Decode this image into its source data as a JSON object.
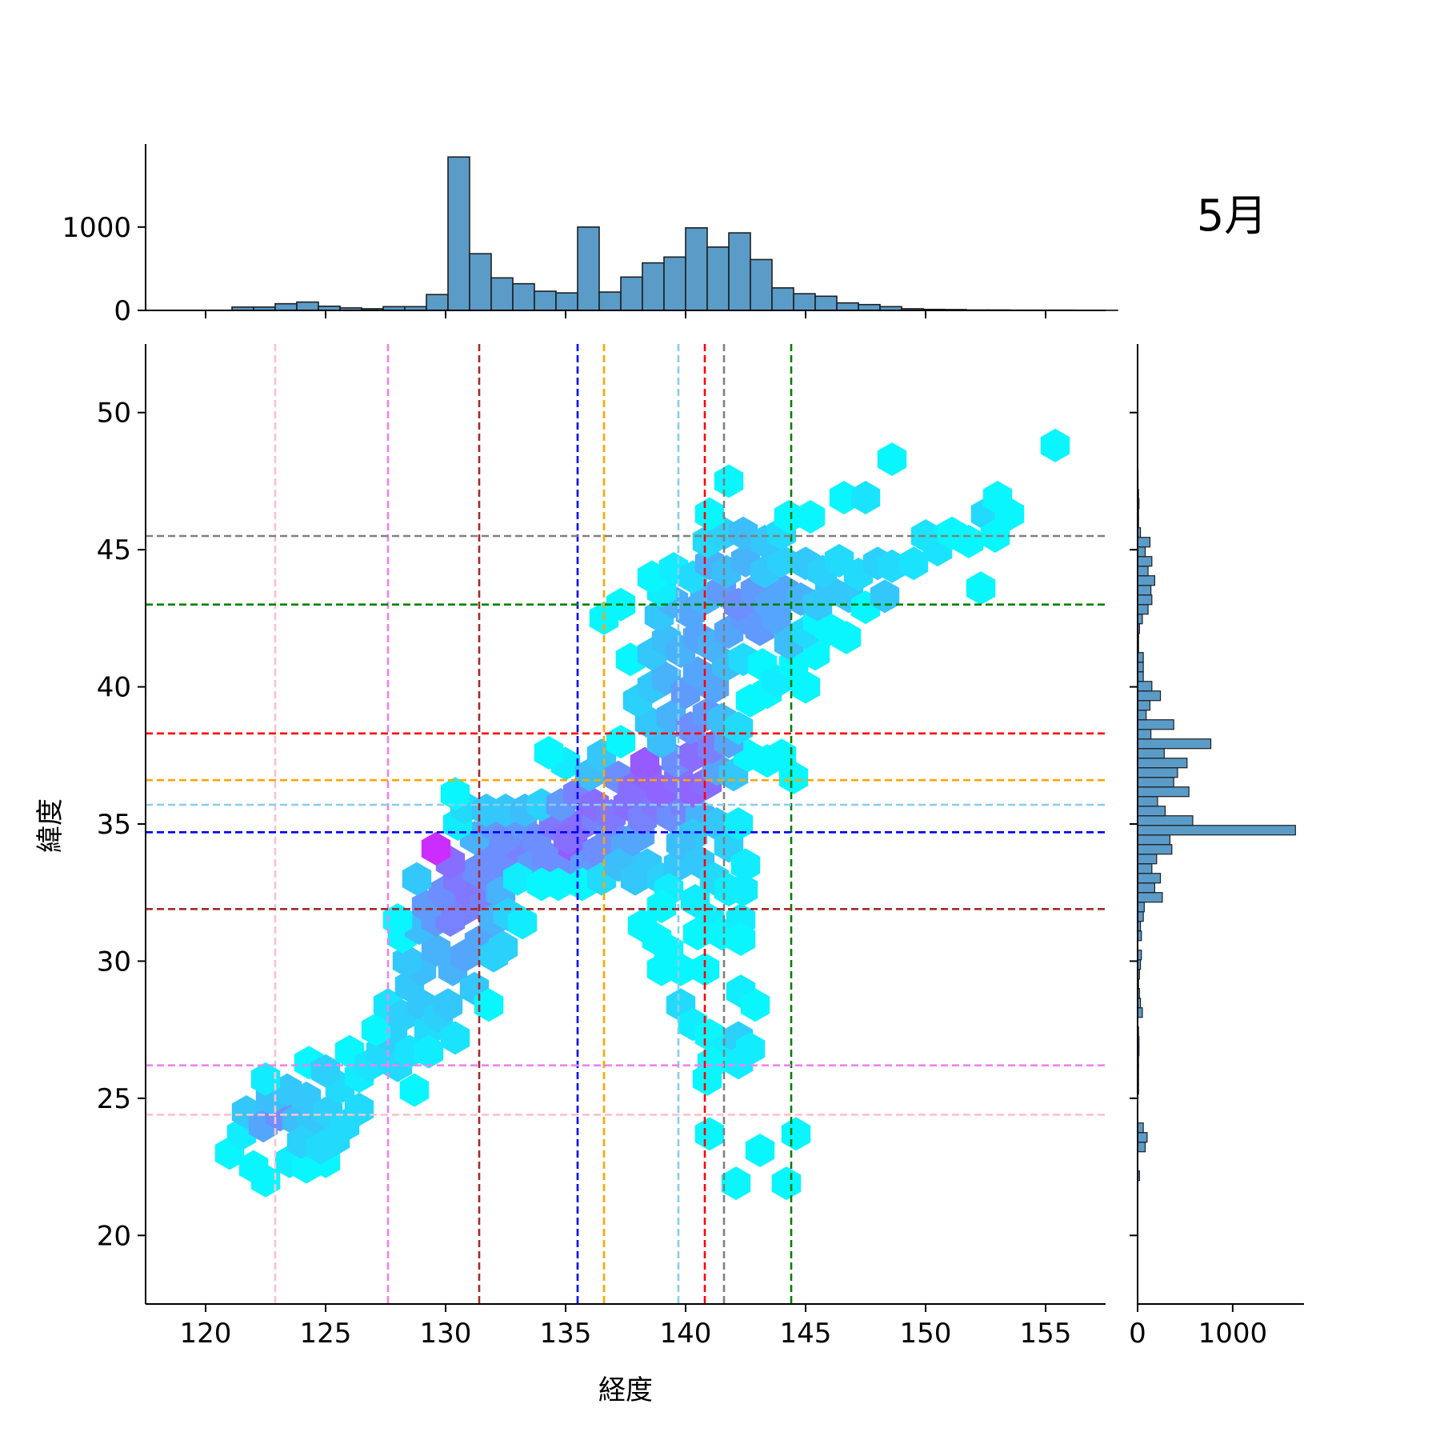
{
  "month_label": "5月",
  "chart_data": {
    "type": "hexbin-jointplot",
    "xlabel": "経度",
    "ylabel": "緯度",
    "xlim": [
      117.5,
      157.5
    ],
    "ylim": [
      17.5,
      52.5
    ],
    "x_ticks": [
      "120",
      "125",
      "130",
      "135",
      "140",
      "145",
      "150",
      "155"
    ],
    "y_ticks": [
      "20",
      "25",
      "30",
      "35",
      "40",
      "45",
      "50"
    ],
    "colors": {
      "bar": "#5b9bc8",
      "bar_edge": "#1f1f1f",
      "hex_low": "#00ffff",
      "hex_high": "#ff00ff"
    },
    "top_hist": {
      "tick_labels": [
        "0",
        "1000"
      ],
      "bin_start": 120.2,
      "bin_width": 0.9,
      "counts": [
        0,
        40,
        40,
        80,
        100,
        50,
        30,
        20,
        45,
        45,
        190,
        1840,
        680,
        390,
        320,
        230,
        210,
        1000,
        220,
        400,
        570,
        640,
        990,
        760,
        930,
        610,
        270,
        200,
        170,
        90,
        70,
        45,
        20,
        12,
        10,
        5,
        5,
        3,
        3,
        3,
        2,
        2
      ]
    },
    "right_hist": {
      "tick_labels": [
        "0",
        "1000"
      ],
      "bin_start": 22.0,
      "bin_height": 0.35,
      "counts": [
        20,
        0,
        0,
        80,
        100,
        60,
        0,
        0,
        0,
        10,
        10,
        10,
        10,
        15,
        15,
        10,
        0,
        50,
        30,
        20,
        10,
        20,
        30,
        40,
        0,
        40,
        30,
        60,
        70,
        260,
        180,
        240,
        150,
        200,
        360,
        340,
        1660,
        580,
        290,
        210,
        540,
        380,
        420,
        520,
        280,
        770,
        140,
        380,
        90,
        130,
        240,
        150,
        60,
        60,
        60,
        10,
        10,
        20,
        50,
        110,
        150,
        140,
        180,
        110,
        150,
        80,
        130,
        30,
        10,
        10,
        15,
        10,
        5,
        5,
        3
      ],
      "note": ""
    },
    "vlines": [
      {
        "x": 122.9,
        "color": "#ffc0cb"
      },
      {
        "x": 127.6,
        "color": "#ee82ee"
      },
      {
        "x": 131.4,
        "color": "#a52a2a"
      },
      {
        "x": 135.5,
        "color": "#0000ff"
      },
      {
        "x": 136.6,
        "color": "#ffa500"
      },
      {
        "x": 139.7,
        "color": "#87ceeb"
      },
      {
        "x": 140.8,
        "color": "#ff0000"
      },
      {
        "x": 141.6,
        "color": "#808080"
      },
      {
        "x": 144.4,
        "color": "#008000"
      }
    ],
    "hlines": [
      {
        "y": 24.4,
        "color": "#ffc0cb"
      },
      {
        "y": 26.2,
        "color": "#ee82ee"
      },
      {
        "y": 31.9,
        "color": "#a52a2a"
      },
      {
        "y": 34.7,
        "color": "#0000ff"
      },
      {
        "y": 35.7,
        "color": "#87ceeb"
      },
      {
        "y": 36.6,
        "color": "#ffa500"
      },
      {
        "y": 38.3,
        "color": "#ff0000"
      },
      {
        "y": 43.0,
        "color": "#008000"
      },
      {
        "y": 45.5,
        "color": "#808080"
      }
    ],
    "hex_points": [
      [
        121,
        23,
        0.05
      ],
      [
        121.5,
        23.7,
        0.1
      ],
      [
        122,
        22.5,
        0.05
      ],
      [
        122.5,
        22.0,
        0.05
      ],
      [
        121.7,
        24.5,
        0.3
      ],
      [
        122.4,
        24.0,
        0.45
      ],
      [
        123.1,
        24.4,
        0.55
      ],
      [
        123.8,
        24.2,
        0.35
      ],
      [
        124.4,
        24.0,
        0.3
      ],
      [
        122.7,
        25.0,
        0.35
      ],
      [
        123.4,
        25.3,
        0.3
      ],
      [
        124.2,
        25.0,
        0.3
      ],
      [
        122.5,
        25.7,
        0.1
      ],
      [
        123.5,
        22.7,
        0.1
      ],
      [
        124.2,
        22.5,
        0.05
      ],
      [
        125.0,
        22.7,
        0.05
      ],
      [
        124.0,
        23.4,
        0.25
      ],
      [
        124.8,
        23.2,
        0.2
      ],
      [
        125.4,
        23.5,
        0.2
      ],
      [
        125.1,
        24.5,
        0.25
      ],
      [
        125.8,
        24.0,
        0.2
      ],
      [
        126.4,
        24.6,
        0.2
      ],
      [
        125.6,
        25.4,
        0.2
      ],
      [
        126.4,
        25.8,
        0.1
      ],
      [
        124.3,
        26.3,
        0.05
      ],
      [
        125.0,
        26.0,
        0.25
      ],
      [
        126.0,
        26.7,
        0.05
      ],
      [
        126.8,
        26.2,
        0.15
      ],
      [
        127.3,
        26.7,
        0.2
      ],
      [
        127.8,
        27.2,
        0.25
      ],
      [
        128.0,
        26.2,
        0.2
      ],
      [
        127.1,
        27.5,
        0.05
      ],
      [
        127.6,
        28.4,
        0.15
      ],
      [
        128.2,
        28.0,
        0.25
      ],
      [
        128.5,
        29.1,
        0.3
      ],
      [
        129.0,
        28.4,
        0.3
      ],
      [
        129.3,
        27.5,
        0.2
      ],
      [
        129.7,
        28.0,
        0.25
      ],
      [
        128.5,
        26.7,
        0.15
      ],
      [
        128.7,
        25.3,
        0.05
      ],
      [
        129.3,
        26.7,
        0.1
      ],
      [
        130.4,
        27.2,
        0.15
      ],
      [
        130.1,
        28.4,
        0.3
      ],
      [
        129.0,
        29.7,
        0.35
      ],
      [
        129.6,
        30.4,
        0.4
      ],
      [
        130.3,
        29.7,
        0.4
      ],
      [
        130.8,
        30.2,
        0.45
      ],
      [
        131.2,
        29.0,
        0.3
      ],
      [
        131.8,
        28.4,
        0.05
      ],
      [
        131.4,
        30.7,
        0.45
      ],
      [
        132.0,
        30.2,
        0.25
      ],
      [
        128.4,
        30.0,
        0.3
      ],
      [
        128.2,
        30.9,
        0.05
      ],
      [
        128.9,
        31.2,
        0.35
      ],
      [
        129.6,
        31.5,
        0.5
      ],
      [
        130.2,
        31.5,
        0.6
      ],
      [
        130.8,
        31.9,
        0.6
      ],
      [
        129.2,
        32.0,
        0.5
      ],
      [
        129.9,
        32.5,
        0.55
      ],
      [
        130.5,
        33.0,
        0.65
      ],
      [
        131.0,
        32.5,
        0.65
      ],
      [
        131.6,
        32.0,
        0.6
      ],
      [
        131.3,
        33.3,
        0.55
      ],
      [
        130.2,
        33.6,
        0.7
      ],
      [
        129.6,
        34.1,
        0.9
      ],
      [
        128.8,
        33.0,
        0.3
      ],
      [
        128.0,
        31.5,
        0.05
      ],
      [
        131.9,
        33.0,
        0.55
      ],
      [
        132.3,
        32.5,
        0.4
      ],
      [
        132.0,
        31.5,
        0.4
      ],
      [
        132.6,
        31.7,
        0.25
      ],
      [
        132.4,
        30.5,
        0.25
      ],
      [
        133.2,
        31.4,
        0.1
      ],
      [
        131.8,
        34.0,
        0.55
      ],
      [
        132.5,
        33.6,
        0.55
      ],
      [
        133.0,
        34.2,
        0.6
      ],
      [
        133.6,
        33.5,
        0.5
      ],
      [
        134.2,
        33.8,
        0.55
      ],
      [
        134.8,
        33.5,
        0.55
      ],
      [
        135.3,
        34.2,
        0.8
      ],
      [
        135.8,
        33.5,
        0.5
      ],
      [
        136.3,
        34.0,
        0.55
      ],
      [
        131.2,
        34.5,
        0.4
      ],
      [
        131.9,
        35.0,
        0.5
      ],
      [
        132.5,
        34.5,
        0.55
      ],
      [
        133.2,
        35.0,
        0.5
      ],
      [
        133.8,
        34.4,
        0.55
      ],
      [
        134.5,
        35.0,
        0.65
      ],
      [
        135.1,
        34.5,
        0.7
      ],
      [
        135.7,
        35.0,
        0.7
      ],
      [
        136.3,
        35.2,
        0.6
      ],
      [
        136.9,
        34.6,
        0.55
      ],
      [
        137.5,
        34.2,
        0.45
      ],
      [
        138.1,
        34.6,
        0.45
      ],
      [
        133.0,
        33.0,
        0.1
      ],
      [
        134.0,
        32.8,
        0.05
      ],
      [
        134.7,
        32.8,
        0.05
      ],
      [
        135.7,
        32.8,
        0.05
      ],
      [
        136.5,
        33.0,
        0.2
      ],
      [
        137.2,
        33.5,
        0.35
      ],
      [
        137.9,
        33.0,
        0.3
      ],
      [
        138.4,
        33.5,
        0.3
      ],
      [
        139.0,
        33.0,
        0.25
      ],
      [
        139.7,
        33.5,
        0.3
      ],
      [
        139.3,
        32.6,
        0.1
      ],
      [
        130.5,
        35.0,
        0.1
      ],
      [
        130.8,
        35.6,
        0.2
      ],
      [
        130.4,
        36.1,
        0.05
      ],
      [
        131.7,
        35.5,
        0.3
      ],
      [
        132.5,
        35.5,
        0.3
      ],
      [
        133.3,
        35.5,
        0.35
      ],
      [
        134.0,
        35.7,
        0.25
      ],
      [
        134.8,
        35.7,
        0.5
      ],
      [
        135.5,
        36.1,
        0.6
      ],
      [
        136.2,
        35.7,
        0.7
      ],
      [
        136.9,
        35.3,
        0.65
      ],
      [
        137.6,
        35.7,
        0.7
      ],
      [
        138.2,
        35.2,
        0.6
      ],
      [
        138.8,
        35.7,
        0.65
      ],
      [
        139.4,
        35.3,
        0.55
      ],
      [
        140.0,
        35.7,
        0.6
      ],
      [
        140.6,
        35.3,
        0.4
      ],
      [
        140.3,
        34.6,
        0.3
      ],
      [
        141.3,
        35.0,
        0.3
      ],
      [
        141.8,
        34.2,
        0.25
      ],
      [
        142.2,
        35.0,
        0.1
      ],
      [
        135.0,
        37.2,
        0.1
      ],
      [
        134.3,
        37.6,
        0.05
      ],
      [
        136.0,
        36.8,
        0.35
      ],
      [
        136.5,
        37.5,
        0.3
      ],
      [
        137.2,
        36.7,
        0.55
      ],
      [
        137.8,
        36.3,
        0.7
      ],
      [
        138.4,
        36.8,
        0.75
      ],
      [
        139.0,
        36.2,
        0.75
      ],
      [
        139.7,
        36.6,
        0.7
      ],
      [
        140.3,
        36.2,
        0.75
      ],
      [
        140.9,
        36.5,
        0.7
      ],
      [
        141.3,
        37.0,
        0.45
      ],
      [
        142.0,
        36.8,
        0.3
      ],
      [
        142.6,
        37.5,
        0.05
      ],
      [
        143.4,
        37.3,
        0.05
      ],
      [
        144.0,
        37.5,
        0.05
      ],
      [
        144.5,
        36.7,
        0.05
      ],
      [
        138.3,
        37.2,
        0.8
      ],
      [
        137.3,
        38.0,
        0.05
      ],
      [
        139.6,
        37.3,
        0.55
      ],
      [
        140.3,
        37.5,
        0.7
      ],
      [
        141.1,
        37.8,
        0.6
      ],
      [
        141.8,
        38.0,
        0.45
      ],
      [
        139.0,
        38.0,
        0.35
      ],
      [
        138.5,
        38.7,
        0.3
      ],
      [
        139.4,
        38.9,
        0.4
      ],
      [
        140.2,
        38.5,
        0.55
      ],
      [
        140.9,
        39.0,
        0.5
      ],
      [
        141.5,
        38.8,
        0.35
      ],
      [
        142.2,
        38.5,
        0.2
      ],
      [
        142.7,
        39.5,
        0.05
      ],
      [
        143.4,
        39.8,
        0.05
      ],
      [
        138.0,
        39.5,
        0.25
      ],
      [
        138.6,
        40.0,
        0.3
      ],
      [
        139.2,
        40.3,
        0.4
      ],
      [
        140.0,
        39.8,
        0.5
      ],
      [
        140.5,
        40.5,
        0.45
      ],
      [
        141.2,
        40.0,
        0.45
      ],
      [
        141.7,
        40.8,
        0.35
      ],
      [
        142.4,
        41.0,
        0.2
      ],
      [
        143.2,
        40.8,
        0.05
      ],
      [
        143.8,
        40.2,
        0.1
      ],
      [
        144.5,
        40.8,
        0.05
      ],
      [
        145.0,
        40.0,
        0.05
      ],
      [
        145.4,
        41.2,
        0.05
      ],
      [
        137.7,
        41.0,
        0.05
      ],
      [
        136.6,
        42.5,
        0.05
      ],
      [
        137.3,
        43.0,
        0.05
      ],
      [
        138.6,
        41.2,
        0.3
      ],
      [
        139.2,
        41.7,
        0.35
      ],
      [
        139.8,
        41.3,
        0.4
      ],
      [
        140.5,
        41.8,
        0.45
      ],
      [
        141.1,
        41.5,
        0.4
      ],
      [
        141.8,
        42.0,
        0.45
      ],
      [
        142.5,
        42.5,
        0.5
      ],
      [
        143.1,
        42.1,
        0.5
      ],
      [
        143.8,
        42.5,
        0.45
      ],
      [
        144.3,
        41.6,
        0.35
      ],
      [
        145.0,
        42.0,
        0.2
      ],
      [
        145.5,
        42.4,
        0.05
      ],
      [
        146.0,
        42.1,
        0.05
      ],
      [
        146.7,
        41.8,
        0.05
      ],
      [
        138.9,
        42.6,
        0.3
      ],
      [
        139.5,
        43.1,
        0.4
      ],
      [
        140.2,
        42.7,
        0.45
      ],
      [
        140.8,
        43.2,
        0.4
      ],
      [
        141.5,
        43.5,
        0.5
      ],
      [
        142.2,
        43.0,
        0.55
      ],
      [
        142.9,
        43.5,
        0.5
      ],
      [
        143.5,
        43.0,
        0.45
      ],
      [
        144.1,
        43.5,
        0.45
      ],
      [
        144.8,
        43.2,
        0.4
      ],
      [
        145.5,
        43.0,
        0.3
      ],
      [
        146.0,
        43.5,
        0.3
      ],
      [
        146.8,
        43.3,
        0.3
      ],
      [
        147.5,
        42.9,
        0.05
      ],
      [
        148.3,
        43.3,
        0.3
      ],
      [
        139.0,
        43.5,
        0.1
      ],
      [
        138.6,
        44.0,
        0.05
      ],
      [
        139.5,
        44.3,
        0.1
      ],
      [
        140.3,
        44.0,
        0.2
      ],
      [
        141.0,
        44.5,
        0.4
      ],
      [
        141.7,
        44.2,
        0.35
      ],
      [
        142.5,
        44.6,
        0.4
      ],
      [
        143.3,
        44.2,
        0.3
      ],
      [
        144.0,
        44.6,
        0.25
      ],
      [
        145.0,
        44.5,
        0.3
      ],
      [
        145.7,
        44.2,
        0.25
      ],
      [
        146.4,
        44.6,
        0.2
      ],
      [
        147.2,
        44.1,
        0.2
      ],
      [
        148.0,
        44.5,
        0.25
      ],
      [
        148.6,
        44.4,
        0.2
      ],
      [
        140.9,
        45.3,
        0.2
      ],
      [
        141.6,
        45.6,
        0.25
      ],
      [
        142.4,
        45.6,
        0.35
      ],
      [
        143.3,
        45.3,
        0.3
      ],
      [
        144.0,
        45.6,
        0.2
      ],
      [
        144.3,
        46.2,
        0.05
      ],
      [
        145.2,
        46.2,
        0.05
      ],
      [
        141.0,
        46.3,
        0.05
      ],
      [
        146.6,
        46.9,
        0.05
      ],
      [
        147.5,
        46.9,
        0.15
      ],
      [
        150.0,
        45.5,
        0.15
      ],
      [
        150.9,
        45.5,
        0.1
      ],
      [
        151.8,
        45.3,
        0.05
      ],
      [
        152.5,
        46.3,
        0.2
      ],
      [
        153.0,
        46.9,
        0.05
      ],
      [
        153.5,
        46.3,
        0.05
      ],
      [
        152.9,
        45.5,
        0.05
      ],
      [
        149.5,
        44.5,
        0.15
      ],
      [
        150.5,
        45.0,
        0.15
      ],
      [
        151.1,
        45.6,
        0.05
      ],
      [
        152.3,
        43.6,
        0.05
      ],
      [
        148.6,
        48.3,
        0.05
      ],
      [
        141.8,
        47.5,
        0.05
      ],
      [
        155.4,
        48.8,
        0.05
      ],
      [
        139.8,
        34.3,
        0.35
      ],
      [
        140.6,
        33.6,
        0.3
      ],
      [
        141.2,
        33.0,
        0.2
      ],
      [
        141.8,
        32.6,
        0.1
      ],
      [
        142.4,
        32.6,
        0.1
      ],
      [
        142.5,
        33.5,
        0.1
      ],
      [
        140.4,
        32.2,
        0.1
      ],
      [
        141.0,
        31.5,
        0.1
      ],
      [
        141.5,
        31.0,
        0.05
      ],
      [
        142.3,
        31.5,
        0.1
      ],
      [
        142.3,
        30.8,
        0.05
      ],
      [
        140.5,
        31.0,
        0.05
      ],
      [
        139.0,
        32.0,
        0.05
      ],
      [
        138.2,
        31.3,
        0.05
      ],
      [
        138.8,
        30.8,
        0.05
      ],
      [
        139.3,
        30.4,
        0.05
      ],
      [
        139.0,
        29.7,
        0.05
      ],
      [
        139.8,
        29.7,
        0.05
      ],
      [
        140.8,
        29.7,
        0.05
      ],
      [
        142.3,
        28.9,
        0.1
      ],
      [
        142.9,
        28.4,
        0.05
      ],
      [
        139.8,
        28.4,
        0.2
      ],
      [
        140.3,
        27.7,
        0.1
      ],
      [
        141.0,
        27.3,
        0.05
      ],
      [
        141.5,
        26.7,
        0.1
      ],
      [
        142.2,
        27.2,
        0.25
      ],
      [
        142.7,
        26.8,
        0.1
      ],
      [
        142.2,
        26.3,
        0.1
      ],
      [
        141.1,
        26.3,
        0.05
      ],
      [
        140.9,
        25.7,
        0.05
      ],
      [
        141.0,
        23.7,
        0.05
      ],
      [
        143.1,
        23.1,
        0.05
      ],
      [
        144.6,
        23.7,
        0.05
      ],
      [
        142.1,
        21.9,
        0.05
      ],
      [
        144.2,
        21.9,
        0.05
      ]
    ]
  }
}
